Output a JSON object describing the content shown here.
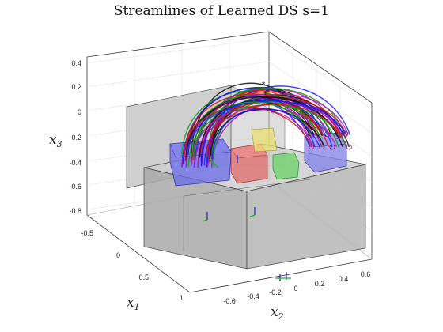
{
  "chart_data": {
    "type": "3d-streamline",
    "title": "Streamlines of Learned DS s=1",
    "xlabel": "x_1",
    "ylabel": "x_2",
    "zlabel": "x_3",
    "x1_ticks": [
      "-0.5",
      "0",
      "0.5",
      "1"
    ],
    "x2_ticks": [
      "-0.6",
      "-0.4",
      "-0.2",
      "0",
      "0.2",
      "0.4",
      "0.6"
    ],
    "x3_ticks": [
      "0.4",
      "0.2",
      "0",
      "-0.2",
      "-0.4",
      "-0.6",
      "-0.8"
    ],
    "grid": true,
    "objects": [
      {
        "name": "table",
        "color": "#a9a9a9"
      },
      {
        "name": "back-wall",
        "color": "#c8c8c8"
      },
      {
        "name": "box-left",
        "color": "#6a6ae8"
      },
      {
        "name": "box-red",
        "color": "#e07070"
      },
      {
        "name": "box-green",
        "color": "#6fd36f"
      },
      {
        "name": "box-yellow",
        "color": "#e8e070"
      },
      {
        "name": "box-right",
        "color": "#8080ea"
      }
    ],
    "streamline_colors": [
      "#1a1aff",
      "#e01010",
      "#101010",
      "#10a010",
      "#b010b0"
    ]
  }
}
